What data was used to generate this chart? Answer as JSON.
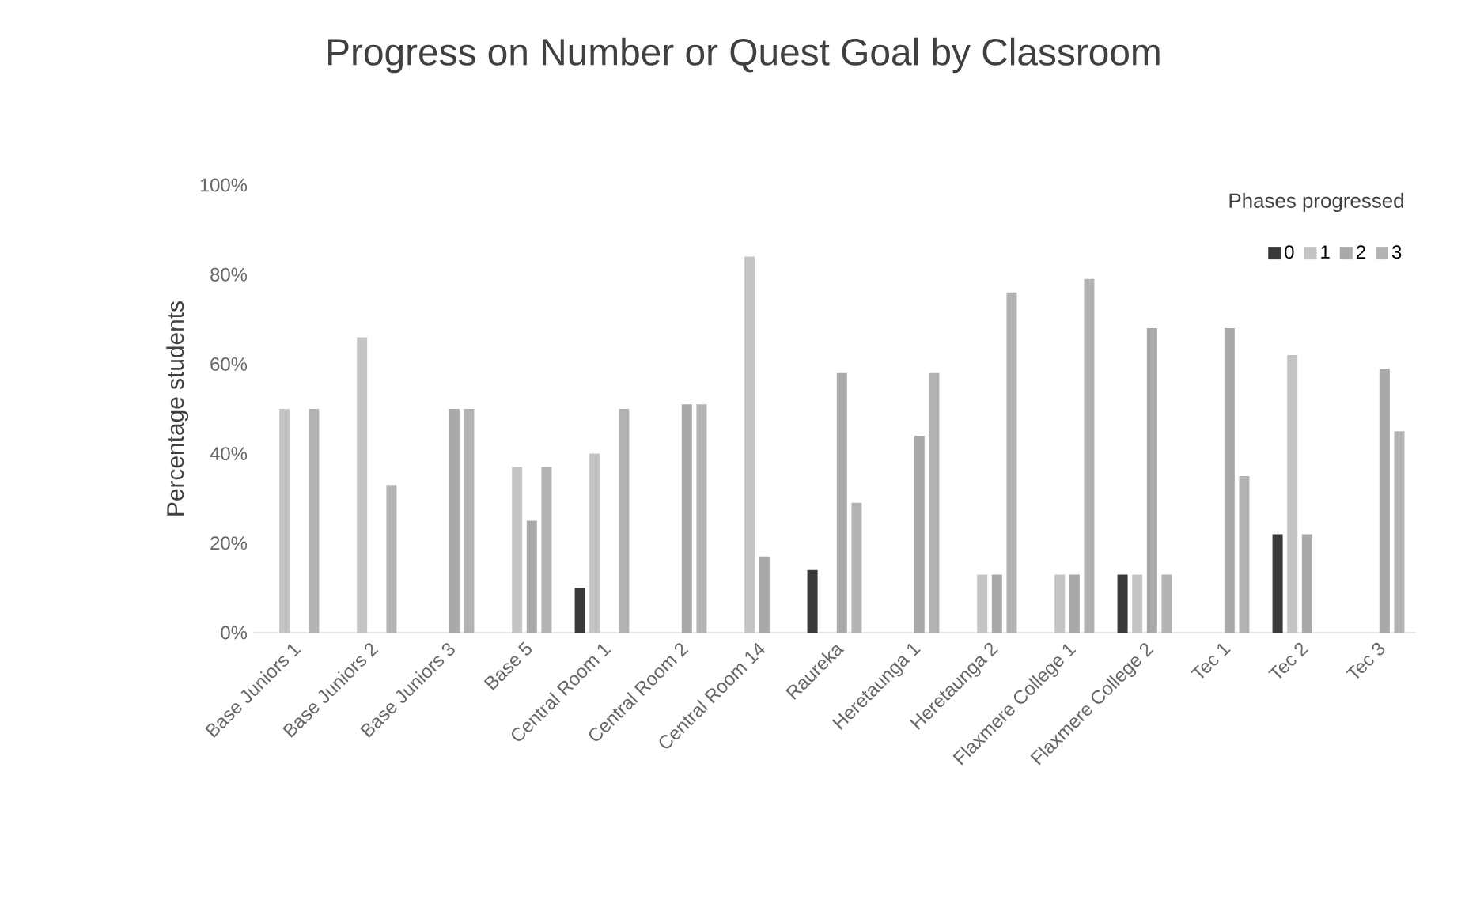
{
  "chart_data": {
    "type": "bar",
    "title": "Progress on Number or Quest Goal by Classroom",
    "ylabel": "Percentage students",
    "legend_title": "Phases progressed",
    "legend": "top right",
    "categories": [
      "Base Juniors 1",
      "Base Juniors 2",
      "Base Juniors 3",
      "Base 5",
      "Central Room 1",
      "Central Room 2",
      "Central Room 14",
      "Raureka",
      "Heretaunga 1",
      "Heretaunga 2",
      "Flaxmere College 1",
      "Flaxmere College 2",
      "Tec 1",
      "Tec 2",
      "Tec 3"
    ],
    "ylim": [
      0,
      100
    ],
    "yticks": [
      {
        "value": 0,
        "label": "0%"
      },
      {
        "value": 20,
        "label": "20%"
      },
      {
        "value": 40,
        "label": "40%"
      },
      {
        "value": 60,
        "label": "60%"
      },
      {
        "value": 80,
        "label": "80%"
      },
      {
        "value": 100,
        "label": "100%"
      }
    ],
    "series": [
      {
        "name": "0",
        "color": "#3a3a3a",
        "values": [
          null,
          null,
          null,
          null,
          10,
          null,
          null,
          14,
          null,
          null,
          null,
          13,
          null,
          22,
          null
        ]
      },
      {
        "name": "1",
        "color": "#c4c4c4",
        "values": [
          50,
          66,
          null,
          37,
          40,
          null,
          84,
          null,
          null,
          13,
          13,
          13,
          null,
          62,
          null
        ]
      },
      {
        "name": "2",
        "color": "#a9a9a9",
        "values": [
          null,
          null,
          50,
          25,
          null,
          51,
          17,
          58,
          44,
          13,
          13,
          68,
          68,
          22,
          59
        ]
      },
      {
        "name": "3",
        "color": "#b3b3b3",
        "values": [
          50,
          33,
          50,
          37,
          50,
          51,
          null,
          29,
          58,
          76,
          79,
          13,
          35,
          null,
          45
        ]
      }
    ]
  }
}
